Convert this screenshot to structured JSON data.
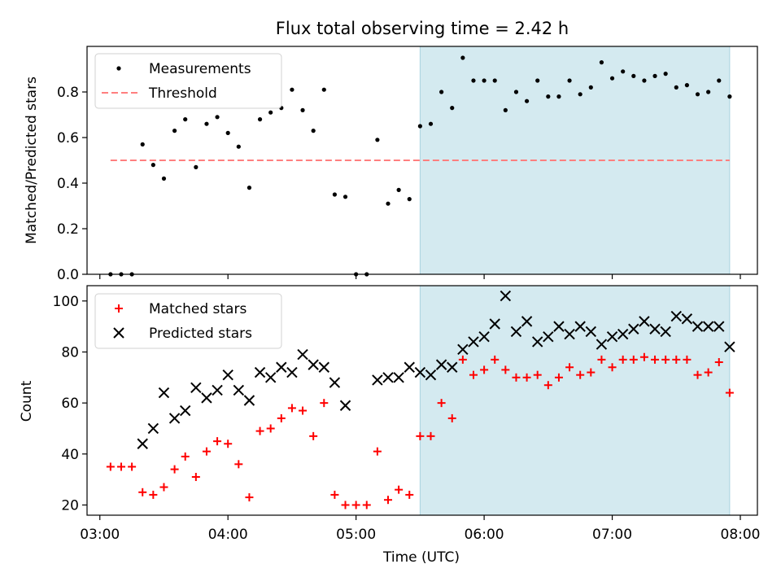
{
  "figure": {
    "title": "Flux total observing time = 2.42 h",
    "xlabel": "Time (UTC)"
  },
  "chart_data": [
    {
      "type": "scatter",
      "ylabel": "Matched/Predicted stars",
      "xlim": [
        "02:54",
        "08:08"
      ],
      "ylim": [
        0,
        1.0
      ],
      "xticks": [
        "03:00",
        "04:00",
        "05:00",
        "06:00",
        "07:00",
        "08:00"
      ],
      "yticks": [
        "0.0",
        "0.2",
        "0.4",
        "0.6",
        "0.8"
      ],
      "shaded_span": {
        "from": "05:30",
        "to": "07:55",
        "color": "#d4eaf0"
      },
      "legend": {
        "position": "upper-left",
        "entries": [
          "Measurements",
          "Threshold"
        ]
      },
      "series": [
        {
          "name": "Measurements",
          "marker": "dot",
          "color": "#000000",
          "x": [
            "03:05",
            "03:10",
            "03:15",
            "03:20",
            "03:25",
            "03:30",
            "03:35",
            "03:40",
            "03:45",
            "03:50",
            "03:55",
            "04:00",
            "04:05",
            "04:10",
            "04:15",
            "04:20",
            "04:25",
            "04:30",
            "04:35",
            "04:40",
            "04:45",
            "04:50",
            "04:55",
            "05:00",
            "05:05",
            "05:10",
            "05:15",
            "05:20",
            "05:25",
            "05:30",
            "05:35",
            "05:40",
            "05:45",
            "05:50",
            "05:55",
            "06:00",
            "06:05",
            "06:10",
            "06:15",
            "06:20",
            "06:25",
            "06:30",
            "06:35",
            "06:40",
            "06:45",
            "06:50",
            "06:55",
            "07:00",
            "07:05",
            "07:10",
            "07:15",
            "07:20",
            "07:25",
            "07:30",
            "07:35",
            "07:40",
            "07:45",
            "07:50",
            "07:55"
          ],
          "y": [
            0,
            0,
            0,
            0.57,
            0.48,
            0.42,
            0.63,
            0.68,
            0.47,
            0.66,
            0.69,
            0.62,
            0.56,
            0.38,
            0.68,
            0.71,
            0.73,
            0.81,
            0.72,
            0.63,
            0.81,
            0.35,
            0.34,
            0,
            0,
            0.59,
            0.31,
            0.37,
            0.33,
            0.65,
            0.66,
            0.8,
            0.73,
            0.95,
            0.85,
            0.85,
            0.85,
            0.72,
            0.8,
            0.76,
            0.85,
            0.78,
            0.78,
            0.85,
            0.79,
            0.82,
            0.93,
            0.86,
            0.89,
            0.87,
            0.85,
            0.87,
            0.88,
            0.82,
            0.83,
            0.79,
            0.8,
            0.85,
            0.78
          ]
        },
        {
          "name": "Threshold",
          "style": "dashed",
          "color": "#ff7f7f",
          "x": [
            "03:05",
            "07:55"
          ],
          "y": [
            0.5,
            0.5
          ]
        }
      ]
    },
    {
      "type": "scatter",
      "ylabel": "Count",
      "xlim": [
        "02:54",
        "08:08"
      ],
      "ylim": [
        16,
        106
      ],
      "xticks": [
        "03:00",
        "04:00",
        "05:00",
        "06:00",
        "07:00",
        "08:00"
      ],
      "yticks": [
        "20",
        "40",
        "60",
        "80",
        "100"
      ],
      "shaded_span": {
        "from": "05:30",
        "to": "07:55",
        "color": "#d4eaf0"
      },
      "legend": {
        "position": "upper-left",
        "entries": [
          "Matched stars",
          "Predicted stars"
        ]
      },
      "series": [
        {
          "name": "Matched stars",
          "marker": "plus",
          "color": "#ff0000",
          "x": [
            "03:05",
            "03:10",
            "03:15",
            "03:20",
            "03:25",
            "03:30",
            "03:35",
            "03:40",
            "03:45",
            "03:50",
            "03:55",
            "04:00",
            "04:05",
            "04:10",
            "04:15",
            "04:20",
            "04:25",
            "04:30",
            "04:35",
            "04:40",
            "04:45",
            "04:50",
            "04:55",
            "05:00",
            "05:05",
            "05:10",
            "05:15",
            "05:20",
            "05:25",
            "05:30",
            "05:35",
            "05:40",
            "05:45",
            "05:50",
            "05:55",
            "06:00",
            "06:05",
            "06:10",
            "06:15",
            "06:20",
            "06:25",
            "06:30",
            "06:35",
            "06:40",
            "06:45",
            "06:50",
            "06:55",
            "07:00",
            "07:05",
            "07:10",
            "07:15",
            "07:20",
            "07:25",
            "07:30",
            "07:35",
            "07:40",
            "07:45",
            "07:50",
            "07:55"
          ],
          "y": [
            35,
            35,
            35,
            25,
            24,
            27,
            34,
            39,
            31,
            41,
            45,
            44,
            36,
            23,
            49,
            50,
            54,
            58,
            57,
            47,
            60,
            24,
            20,
            20,
            20,
            41,
            22,
            26,
            24,
            47,
            47,
            60,
            54,
            77,
            71,
            73,
            77,
            73,
            70,
            70,
            71,
            67,
            70,
            74,
            71,
            72,
            77,
            74,
            77,
            77,
            78,
            77,
            77,
            77,
            77,
            71,
            72,
            76,
            64
          ]
        },
        {
          "name": "Predicted stars",
          "marker": "x",
          "color": "#000000",
          "x": [
            "03:20",
            "03:25",
            "03:30",
            "03:35",
            "03:40",
            "03:45",
            "03:50",
            "03:55",
            "04:00",
            "04:05",
            "04:10",
            "04:15",
            "04:20",
            "04:25",
            "04:30",
            "04:35",
            "04:40",
            "04:45",
            "04:50",
            "04:55",
            "05:10",
            "05:15",
            "05:20",
            "05:25",
            "05:30",
            "05:35",
            "05:40",
            "05:45",
            "05:50",
            "05:55",
            "06:00",
            "06:05",
            "06:10",
            "06:15",
            "06:20",
            "06:25",
            "06:30",
            "06:35",
            "06:40",
            "06:45",
            "06:50",
            "06:55",
            "07:00",
            "07:05",
            "07:10",
            "07:15",
            "07:20",
            "07:25",
            "07:30",
            "07:35",
            "07:40",
            "07:45",
            "07:50",
            "07:55"
          ],
          "y": [
            44,
            50,
            64,
            54,
            57,
            66,
            62,
            65,
            71,
            65,
            61,
            72,
            70,
            74,
            72,
            79,
            75,
            74,
            68,
            59,
            69,
            70,
            70,
            74,
            72,
            71,
            75,
            74,
            81,
            84,
            86,
            91,
            102,
            88,
            92,
            84,
            86,
            90,
            87,
            90,
            88,
            83,
            86,
            87,
            89,
            92,
            89,
            88,
            94,
            93,
            90,
            90,
            90,
            82
          ]
        }
      ]
    }
  ]
}
